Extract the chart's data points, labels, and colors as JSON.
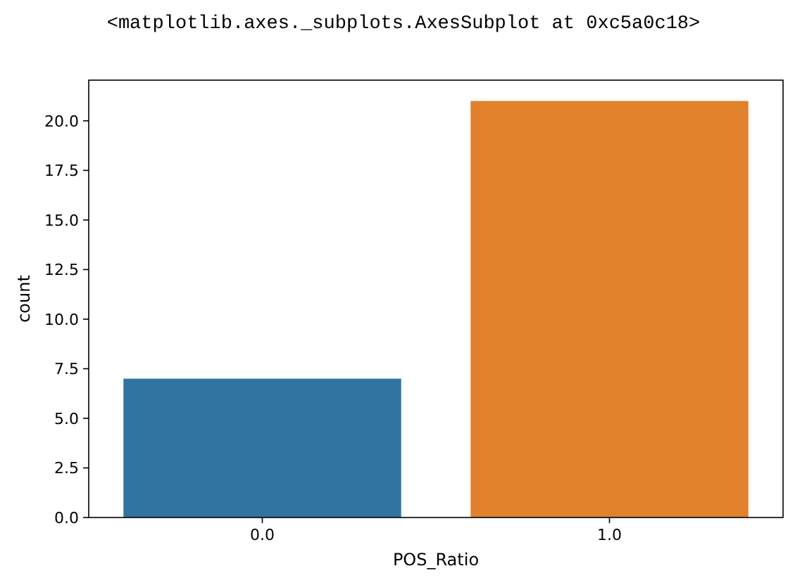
{
  "chart_data": {
    "type": "bar",
    "annotations": [
      "<matplotlib.axes._subplots.AxesSubplot at 0xc5a0c18>"
    ],
    "xlabel": "POS_Ratio",
    "ylabel": "count",
    "categories": [
      "0.0",
      "1.0"
    ],
    "values": [
      7,
      21
    ],
    "colors": [
      "#3274a1",
      "#e1812c"
    ],
    "ylim": [
      0,
      22.05
    ],
    "yticks": [
      {
        "value": 0,
        "label": "0.0"
      },
      {
        "value": 2.5,
        "label": "2.5"
      },
      {
        "value": 5,
        "label": "5.0"
      },
      {
        "value": 7.5,
        "label": "7.5"
      },
      {
        "value": 10,
        "label": "10.0"
      },
      {
        "value": 12.5,
        "label": "12.5"
      },
      {
        "value": 15,
        "label": "15.0"
      },
      {
        "value": 17.5,
        "label": "17.5"
      },
      {
        "value": 20,
        "label": "20.0"
      }
    ],
    "grid": false
  }
}
